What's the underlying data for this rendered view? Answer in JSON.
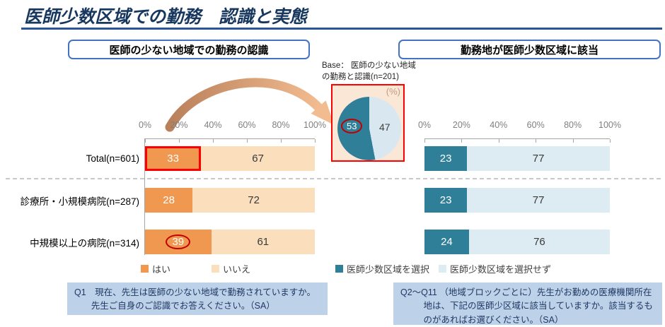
{
  "title": "医師少数区域での勤務　認識と実態",
  "chart_data": [
    {
      "id": "recognition-chart",
      "type": "bar",
      "orientation": "horizontal_stacked",
      "title": "医師の少ない地域での勤務の認識",
      "categories": [
        "Total(n=601)",
        "診療所・小規模病院(n=287)",
        "中規模以上の病院(n=314)"
      ],
      "series": [
        {
          "name": "はい",
          "color": "#F0984F",
          "values": [
            33,
            28,
            39
          ]
        },
        {
          "name": "いいえ",
          "color": "#FBDEBC",
          "values": [
            67,
            72,
            61
          ]
        }
      ],
      "x_ticks": [
        "0%",
        "20%",
        "40%",
        "60%",
        "80%",
        "100%"
      ],
      "xlim": [
        0,
        100
      ],
      "grid": false,
      "legend_position": "bottom",
      "highlight_box": {
        "row": 0,
        "series": 0,
        "color": "#FF0000"
      },
      "highlight_ellipse": {
        "row": 2,
        "series": 0,
        "color": "#C00000"
      }
    },
    {
      "id": "selected-pie",
      "type": "pie",
      "base_note": "Base： 医師の少ない地域の勤務と認識(n=201)",
      "unit_label": "(%)",
      "slices": [
        {
          "label": "医師少数区域を選択",
          "value": 53,
          "color": "#2F7F99",
          "highlight": "dark-red-ellipse"
        },
        {
          "label": "医師少数区域を選択せず",
          "value": 47,
          "color": "#D9E8F0"
        }
      ]
    },
    {
      "id": "actual-chart",
      "type": "bar",
      "orientation": "horizontal_stacked",
      "title": "勤務地が医師少数区域に該当",
      "categories": [
        "Total(n=601)",
        "診療所・小規模病院(n=287)",
        "中規模以上の病院(n=314)"
      ],
      "series": [
        {
          "name": "医師少数区域を選択",
          "color": "#2F7F99",
          "values": [
            23,
            23,
            24
          ]
        },
        {
          "name": "医師少数区域を選択せず",
          "color": "#DDEBF2",
          "values": [
            77,
            77,
            76
          ]
        }
      ],
      "x_ticks": [
        "0%",
        "20%",
        "40%",
        "60%",
        "80%",
        "100%"
      ],
      "xlim": [
        0,
        100
      ],
      "grid": false,
      "legend_position": "bottom"
    }
  ],
  "questions": {
    "left": "Q1　現在、先生は医師の少ない地域で勤務されていますか。先生ご自身のご認識でお答えください。（SA）",
    "right": "Q2～Q11 （地域ブロックごとに）先生がお勤めの医療機関所在地は、下記の医師少区域に該当していますか。該当するものがあればお選びください。（SA）"
  },
  "colors": {
    "title_text": "#17375E",
    "title_rule": "#2A5699",
    "header_border": "#4472C4",
    "axis_text": "#7F7F7F",
    "axis_line": "#A6A6A6",
    "highlight_red": "#FF0000",
    "ellipse_red": "#C00000",
    "pie_panel_bg": "#FBE7D6",
    "question_bg": "#BDD1E8",
    "question_text": "#1F3864",
    "arrow_start": "#B9805A",
    "arrow_end": "#F3BC90"
  }
}
